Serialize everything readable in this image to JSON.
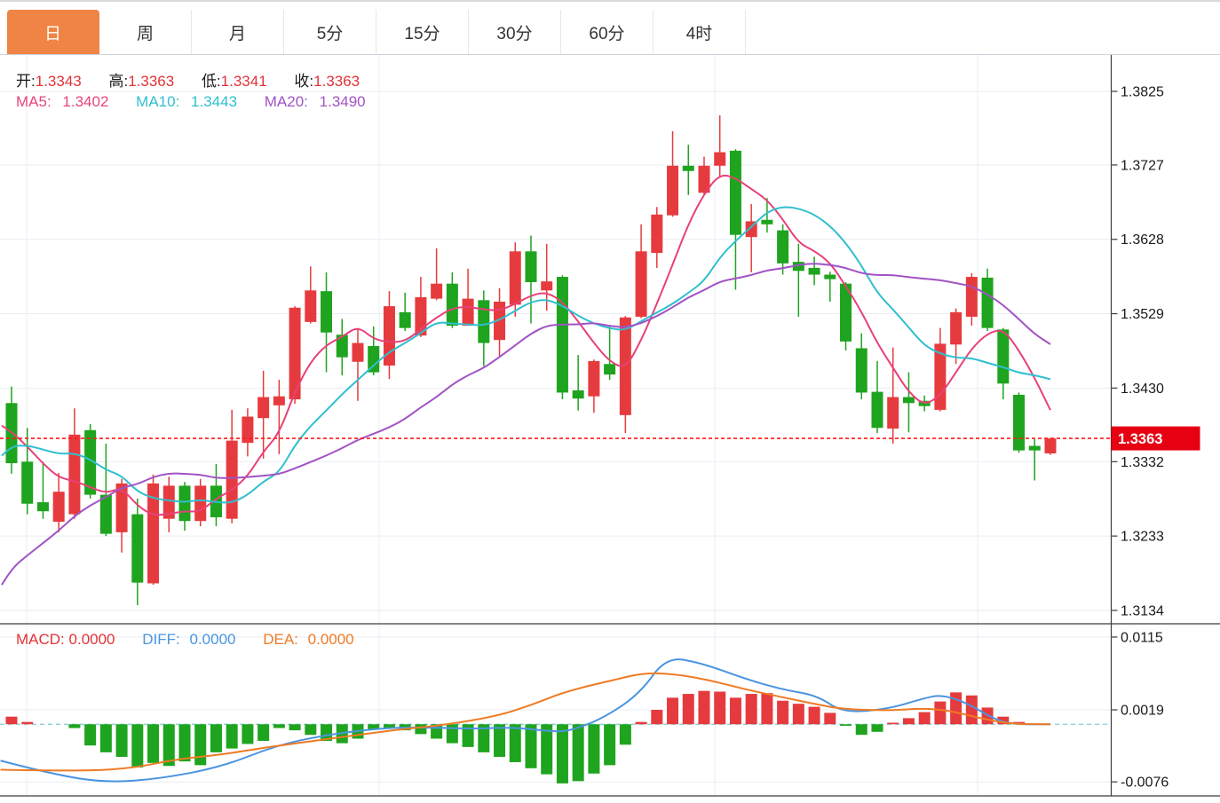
{
  "tabs": {
    "items": [
      {
        "label": "日",
        "active": true
      },
      {
        "label": "周",
        "active": false
      },
      {
        "label": "月",
        "active": false
      },
      {
        "label": "5分",
        "active": false
      },
      {
        "label": "15分",
        "active": false
      },
      {
        "label": "30分",
        "active": false
      },
      {
        "label": "60分",
        "active": false
      },
      {
        "label": "4时",
        "active": false
      }
    ]
  },
  "ohlc_bar": {
    "open_label": "开:",
    "open": "1.3343",
    "high_label": "高:",
    "high": "1.3363",
    "low_label": "低:",
    "low": "1.3341",
    "close_label": "收:",
    "close": "1.3363"
  },
  "ma_bar": {
    "ma5_label": "MA5:",
    "ma5": "1.3402",
    "ma10_label": "MA10:",
    "ma10": "1.3443",
    "ma20_label": "MA20:",
    "ma20": "1.3490"
  },
  "macd_bar": {
    "macd_label": "MACD:",
    "macd": "0.0000",
    "diff_label": "DIFF:",
    "diff": "0.0000",
    "dea_label": "DEA:",
    "dea": "0.0000"
  },
  "colors": {
    "up": "#e63b3e",
    "down": "#1ea41e",
    "ma5": "#e8407a",
    "ma10": "#2fbfcf",
    "ma20": "#a153c5",
    "diff": "#4a94e0",
    "dea": "#ee7b24",
    "tab_accent": "#ef8444",
    "price_tag_bg": "#e60012",
    "price_tag_text": "#ffffff",
    "dotted_line": "#ff1a1a",
    "zero_dash": "#7fcfdd",
    "grid": "#e9eef3",
    "axis": "#3c3c3c",
    "label_text": "#1a1a1a",
    "value_red": "#e23237"
  },
  "chart_data": {
    "type": "candlestick",
    "panels": [
      "price",
      "macd"
    ],
    "price_axis_labels": [
      "1.3825",
      "1.3727",
      "1.3628",
      "1.3529",
      "1.3430",
      "1.3332",
      "1.3233",
      "1.3134"
    ],
    "current_price_label": "1.3363",
    "current_price": 1.3363,
    "macd_axis_labels": [
      "0.0115",
      "0.0019",
      "-0.0076"
    ],
    "price_domain": [
      1.31162,
      1.38734
    ],
    "macd_domain": [
      -0.00945,
      0.01325
    ],
    "vertical_gridlines_x": [
      30,
      427,
      805,
      1101
    ],
    "candle_count": 67,
    "candles": [
      [
        1.341,
        1.3432,
        1.3316,
        1.333
      ],
      [
        1.3332,
        1.3377,
        1.3262,
        1.3276
      ],
      [
        1.3278,
        1.3332,
        1.3256,
        1.3266
      ],
      [
        1.3252,
        1.3317,
        1.3238,
        1.3292
      ],
      [
        1.3262,
        1.3403,
        1.3256,
        1.3368
      ],
      [
        1.3374,
        1.3382,
        1.3283,
        1.3288
      ],
      [
        1.3288,
        1.3356,
        1.3233,
        1.3236
      ],
      [
        1.3238,
        1.3309,
        1.3211,
        1.3303
      ],
      [
        1.3262,
        1.3283,
        1.3141,
        1.3171
      ],
      [
        1.317,
        1.3315,
        1.3168,
        1.3303
      ],
      [
        1.3256,
        1.3312,
        1.3238,
        1.33
      ],
      [
        1.33,
        1.3305,
        1.324,
        1.3253
      ],
      [
        1.3253,
        1.3309,
        1.3246,
        1.33
      ],
      [
        1.33,
        1.3329,
        1.3246,
        1.3258
      ],
      [
        1.3256,
        1.3401,
        1.325,
        1.336
      ],
      [
        1.3357,
        1.3403,
        1.3339,
        1.3392
      ],
      [
        1.339,
        1.3453,
        1.3336,
        1.3418
      ],
      [
        1.3407,
        1.3441,
        1.3342,
        1.3419
      ],
      [
        1.3415,
        1.3539,
        1.3409,
        1.3537
      ],
      [
        1.3518,
        1.3592,
        1.3516,
        1.356
      ],
      [
        1.3559,
        1.3584,
        1.3451,
        1.3504
      ],
      [
        1.3501,
        1.3522,
        1.3447,
        1.3471
      ],
      [
        1.3465,
        1.351,
        1.3413,
        1.349
      ],
      [
        1.3486,
        1.3512,
        1.3447,
        1.3451
      ],
      [
        1.346,
        1.3559,
        1.3442,
        1.3539
      ],
      [
        1.3531,
        1.3557,
        1.3506,
        1.351
      ],
      [
        1.35,
        1.3578,
        1.3498,
        1.3551
      ],
      [
        1.3549,
        1.3616,
        1.3547,
        1.3569
      ],
      [
        1.3569,
        1.3584,
        1.351,
        1.3513
      ],
      [
        1.3513,
        1.3589,
        1.3513,
        1.3549
      ],
      [
        1.3547,
        1.356,
        1.3459,
        1.349
      ],
      [
        1.3494,
        1.3563,
        1.3471,
        1.3545
      ],
      [
        1.3541,
        1.3624,
        1.3525,
        1.3612
      ],
      [
        1.3612,
        1.3633,
        1.3516,
        1.3571
      ],
      [
        1.356,
        1.3622,
        1.3533,
        1.3572
      ],
      [
        1.3578,
        1.358,
        1.3415,
        1.3424
      ],
      [
        1.3427,
        1.3474,
        1.34,
        1.3416
      ],
      [
        1.3419,
        1.3468,
        1.3397,
        1.3466
      ],
      [
        1.3462,
        1.3512,
        1.3441,
        1.3448
      ],
      [
        1.3394,
        1.3526,
        1.337,
        1.3524
      ],
      [
        1.3525,
        1.3648,
        1.3523,
        1.3612
      ],
      [
        1.361,
        1.3671,
        1.359,
        1.3661
      ],
      [
        1.366,
        1.3772,
        1.3658,
        1.3726
      ],
      [
        1.3726,
        1.3754,
        1.3687,
        1.3719
      ],
      [
        1.369,
        1.3738,
        1.3688,
        1.3726
      ],
      [
        1.3726,
        1.3793,
        1.371,
        1.3744
      ],
      [
        1.3746,
        1.3748,
        1.3561,
        1.3634
      ],
      [
        1.3631,
        1.3675,
        1.3584,
        1.3652
      ],
      [
        1.3654,
        1.3683,
        1.3637,
        1.3648
      ],
      [
        1.364,
        1.3648,
        1.3581,
        1.3596
      ],
      [
        1.3598,
        1.3622,
        1.3525,
        1.3586
      ],
      [
        1.359,
        1.3605,
        1.3567,
        1.3581
      ],
      [
        1.3581,
        1.3585,
        1.3545,
        1.3575
      ],
      [
        1.3569,
        1.3571,
        1.348,
        1.3492
      ],
      [
        1.3483,
        1.3503,
        1.3415,
        1.3424
      ],
      [
        1.3425,
        1.3466,
        1.337,
        1.3377
      ],
      [
        1.3376,
        1.3484,
        1.3356,
        1.3418
      ],
      [
        1.3418,
        1.3451,
        1.3371,
        1.341
      ],
      [
        1.3413,
        1.342,
        1.3399,
        1.3406
      ],
      [
        1.3401,
        1.351,
        1.3399,
        1.3489
      ],
      [
        1.3488,
        1.3536,
        1.3462,
        1.3531
      ],
      [
        1.3525,
        1.3583,
        1.3513,
        1.3578
      ],
      [
        1.3577,
        1.3589,
        1.3506,
        1.351
      ],
      [
        1.3508,
        1.351,
        1.3415,
        1.3436
      ],
      [
        1.3421,
        1.3424,
        1.3344,
        1.3347
      ],
      [
        1.3353,
        1.3362,
        1.3307,
        1.3347
      ],
      [
        1.3343,
        1.3363,
        1.3341,
        1.3363
      ]
    ],
    "ma_seed_closes": [
      1.29,
      1.292,
      1.294,
      1.296,
      1.298,
      1.3,
      1.302,
      1.305,
      1.308,
      1.311,
      1.32,
      1.327,
      1.332,
      1.335,
      1.336,
      1.337,
      1.3375,
      1.338,
      1.3385,
      1.339
    ],
    "macd_hist": [
      0.001,
      0.0003,
      0.0,
      0.0,
      -0.0005,
      -0.0028,
      -0.0037,
      -0.0043,
      -0.0057,
      -0.0051,
      -0.0055,
      -0.0049,
      -0.0054,
      -0.0037,
      -0.0032,
      -0.0026,
      -0.0022,
      -0.0005,
      -0.0008,
      -0.0014,
      -0.0022,
      -0.0025,
      -0.0019,
      -0.0007,
      -0.0005,
      -0.0008,
      -0.0013,
      -0.0019,
      -0.0025,
      -0.003,
      -0.0037,
      -0.0043,
      -0.005,
      -0.0058,
      -0.0066,
      -0.0078,
      -0.0075,
      -0.0065,
      -0.0054,
      -0.0027,
      0.0003,
      0.0019,
      0.0035,
      0.004,
      0.0044,
      0.0043,
      0.0035,
      0.004,
      0.0041,
      0.0031,
      0.0027,
      0.0023,
      0.0015,
      -0.0002,
      -0.0014,
      -0.001,
      0.0002,
      0.0008,
      0.0016,
      0.003,
      0.0042,
      0.0038,
      0.0022,
      0.001,
      0.0003,
      0.0,
      0.0
    ],
    "diff_points": [
      [
        -0.7,
        -0.0048
      ],
      [
        2.6,
        -0.0066
      ],
      [
        6,
        -0.0077
      ],
      [
        9.4,
        -0.0072
      ],
      [
        13.4,
        -0.0056
      ],
      [
        16.8,
        -0.0028
      ],
      [
        20,
        -0.0014
      ],
      [
        23.5,
        -0.0005
      ],
      [
        26.3,
        -0.0004
      ],
      [
        29.2,
        -0.0006
      ],
      [
        32,
        -0.0004
      ],
      [
        34.5,
        -0.001
      ],
      [
        35.6,
        -0.0008
      ],
      [
        37.6,
        0.0008
      ],
      [
        39.9,
        0.004
      ],
      [
        41.6,
        0.0089
      ],
      [
        43.8,
        0.0081
      ],
      [
        46.6,
        0.006
      ],
      [
        48.9,
        0.0046
      ],
      [
        51.2,
        0.0038
      ],
      [
        52.8,
        0.0015
      ],
      [
        55.7,
        0.002
      ],
      [
        57.9,
        0.0034
      ],
      [
        59.1,
        0.0039
      ],
      [
        60.7,
        0.0028
      ],
      [
        62.4,
        0.0007
      ],
      [
        63.6,
        0.0
      ],
      [
        66,
        0.0
      ]
    ],
    "dea_points": [
      [
        -0.7,
        -0.006
      ],
      [
        4.3,
        -0.0062
      ],
      [
        7.7,
        -0.0058
      ],
      [
        10.5,
        -0.0046
      ],
      [
        13.4,
        -0.004
      ],
      [
        16.3,
        -0.003
      ],
      [
        19.2,
        -0.0022
      ],
      [
        22,
        -0.0014
      ],
      [
        24.6,
        -0.0007
      ],
      [
        27.5,
        -0.0001
      ],
      [
        30.9,
        0.0011
      ],
      [
        33.1,
        0.0026
      ],
      [
        34.8,
        0.004
      ],
      [
        36.5,
        0.005
      ],
      [
        38.2,
        0.0058
      ],
      [
        40.2,
        0.0068
      ],
      [
        42.2,
        0.0066
      ],
      [
        44.4,
        0.0058
      ],
      [
        46.6,
        0.0046
      ],
      [
        48.9,
        0.0036
      ],
      [
        51.2,
        0.0026
      ],
      [
        52.8,
        0.002
      ],
      [
        55.7,
        0.0018
      ],
      [
        57.9,
        0.0021
      ],
      [
        59.6,
        0.0018
      ],
      [
        61.3,
        0.0009
      ],
      [
        63,
        0.0002
      ],
      [
        64.3,
        0.0
      ],
      [
        66,
        0.0
      ]
    ]
  }
}
